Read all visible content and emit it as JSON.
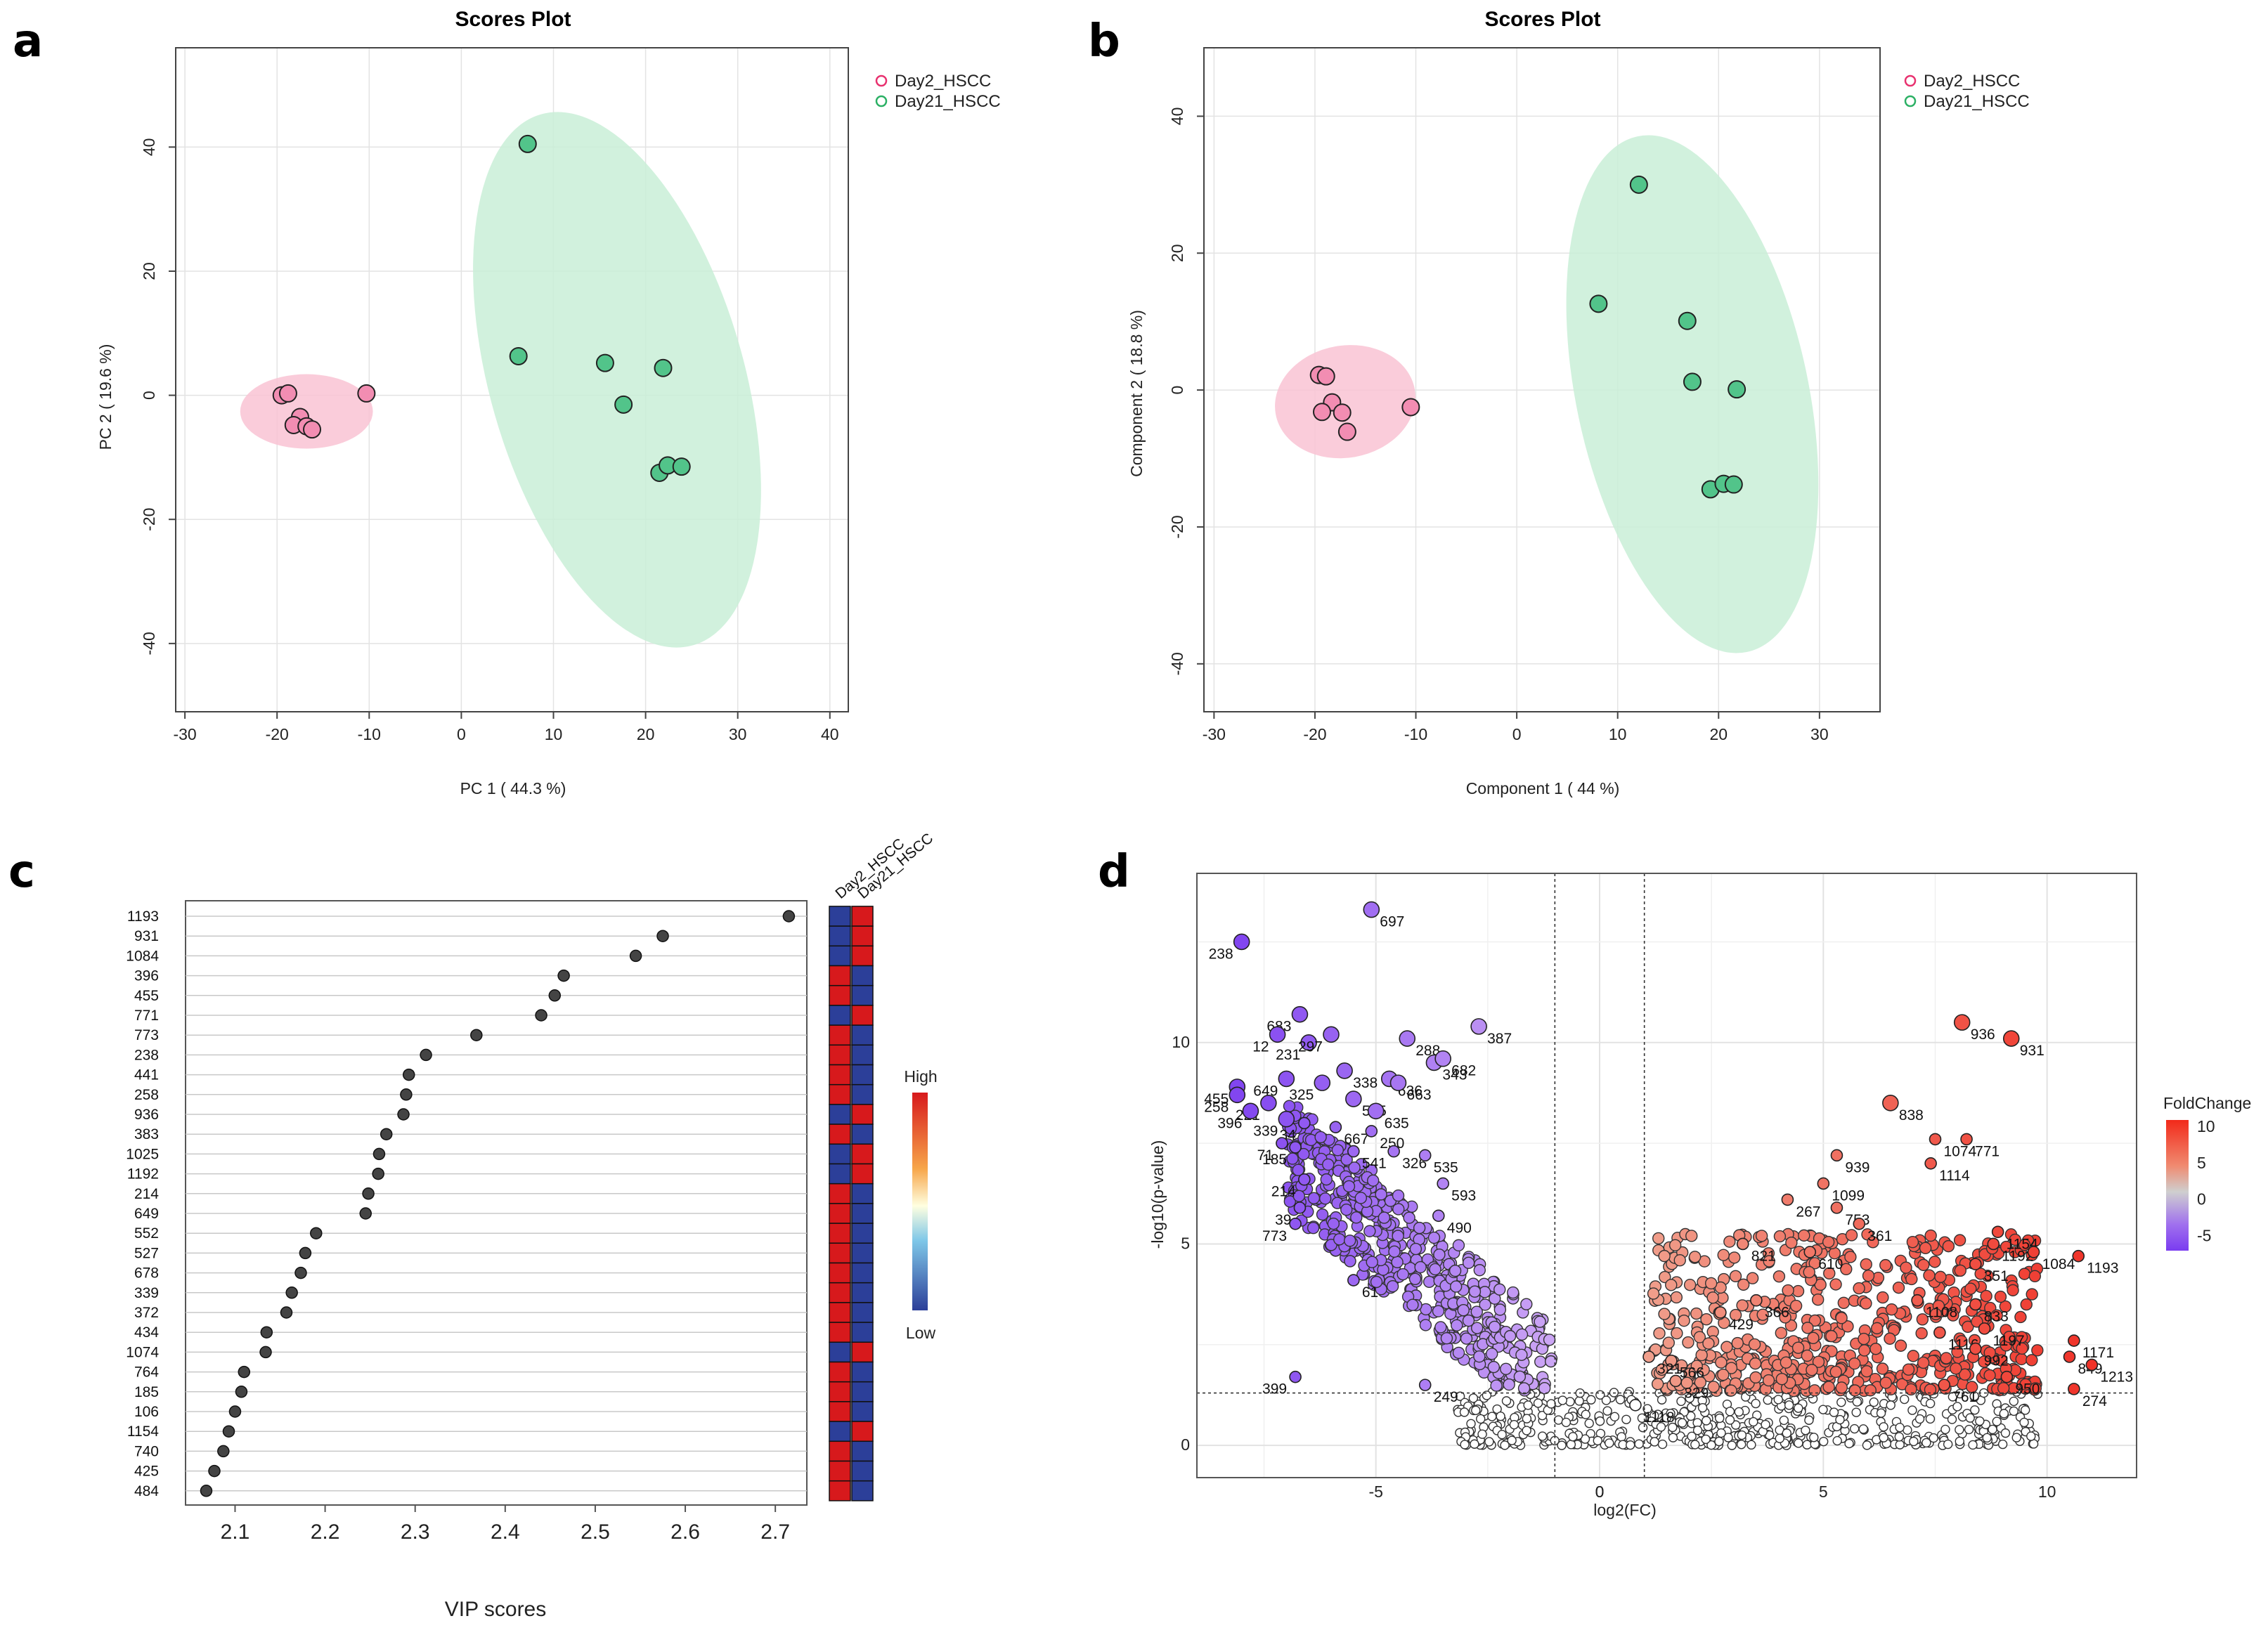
{
  "figure": {
    "panel_labels": [
      "a",
      "b",
      "c",
      "d"
    ]
  },
  "colors": {
    "day2": "#f28db2",
    "day21": "#52c48a",
    "day2_ellipse": "#f9c3d3",
    "day21_ellipse": "#c9eed7",
    "heat_high": "#d7191c",
    "heat_low": "#2c3f99",
    "volcano_up": "#f25430",
    "volcano_down": "#8a4cf0",
    "volcano_ns": "#ffffff"
  },
  "chart_data": [
    {
      "id": "a",
      "type": "scatter",
      "title": "Scores Plot",
      "xlabel": "PC 1 ( 44.3 %)",
      "ylabel": "PC 2 ( 19.6 %)",
      "xlim": [
        -31,
        42
      ],
      "ylim": [
        -51,
        56
      ],
      "xticks": [
        -30,
        -20,
        -10,
        0,
        10,
        20,
        30,
        40
      ],
      "yticks": [
        -40,
        -20,
        0,
        20,
        40
      ],
      "legend": [
        "Day2_HSCC",
        "Day21_HSCC"
      ],
      "legend_position": "top-right",
      "series": [
        {
          "name": "Day2_HSCC",
          "points": [
            [
              -19.5,
              0
            ],
            [
              -18.8,
              0.3
            ],
            [
              -17.5,
              -3.5
            ],
            [
              -18.2,
              -4.8
            ],
            [
              -16.8,
              -5.0
            ],
            [
              -16.2,
              -5.5
            ],
            [
              -10.3,
              0.3
            ]
          ],
          "ellipse": {
            "cx": -16.8,
            "cy": -2.6,
            "rx": 7.2,
            "ry": 6.0,
            "angle": 0
          }
        },
        {
          "name": "Day21_HSCC",
          "points": [
            [
              7.2,
              40.5
            ],
            [
              6.2,
              6.3
            ],
            [
              15.6,
              5.2
            ],
            [
              21.9,
              4.4
            ],
            [
              17.6,
              -1.5
            ],
            [
              21.5,
              -12.5
            ],
            [
              22.4,
              -11.3
            ],
            [
              23.9,
              -11.5
            ]
          ],
          "ellipse": {
            "cx": 16.9,
            "cy": 2.5,
            "rx": 13.8,
            "ry": 44.5,
            "angle": -16
          }
        }
      ]
    },
    {
      "id": "b",
      "type": "scatter",
      "title": "Scores Plot",
      "xlabel": "Component 1 ( 44 %)",
      "ylabel": "Component 2 ( 18.8 %)",
      "xlim": [
        -31,
        36
      ],
      "ylim": [
        -47,
        50
      ],
      "xticks": [
        -30,
        -20,
        -10,
        0,
        10,
        20,
        30
      ],
      "yticks": [
        -40,
        -20,
        0,
        20,
        40
      ],
      "legend": [
        "Day2_HSCC",
        "Day21_HSCC"
      ],
      "legend_position": "top-right",
      "series": [
        {
          "name": "Day2_HSCC",
          "points": [
            [
              -19.6,
              2.2
            ],
            [
              -18.9,
              2.0
            ],
            [
              -18.3,
              -1.8
            ],
            [
              -19.3,
              -3.2
            ],
            [
              -17.3,
              -3.3
            ],
            [
              -16.8,
              -6.1
            ],
            [
              -10.5,
              -2.5
            ]
          ],
          "ellipse": {
            "cx": -17.0,
            "cy": -1.7,
            "rx": 7.0,
            "ry": 8.2,
            "angle": -10
          }
        },
        {
          "name": "Day21_HSCC",
          "points": [
            [
              12.1,
              30.0
            ],
            [
              8.1,
              12.6
            ],
            [
              16.9,
              10.1
            ],
            [
              17.4,
              1.2
            ],
            [
              21.8,
              0.1
            ],
            [
              19.2,
              -14.5
            ],
            [
              20.5,
              -13.7
            ],
            [
              21.5,
              -13.8
            ]
          ],
          "ellipse": {
            "cx": 17.4,
            "cy": -0.6,
            "rx": 11.5,
            "ry": 38.5,
            "angle": -12
          }
        }
      ]
    },
    {
      "id": "c",
      "type": "scatter",
      "xlabel": "VIP scores",
      "xlim": [
        2.045,
        2.735
      ],
      "xticks": [
        2.1,
        2.2,
        2.3,
        2.4,
        2.5,
        2.6,
        2.7
      ],
      "heatmap_columns": [
        "Day2_HSCC",
        "Day21_HSCC"
      ],
      "colorbar": {
        "high": "High",
        "low": "Low"
      },
      "features": [
        {
          "name": "1193",
          "vip": 2.715,
          "day2": "low",
          "day21": "high"
        },
        {
          "name": "931",
          "vip": 2.575,
          "day2": "low",
          "day21": "high"
        },
        {
          "name": "1084",
          "vip": 2.545,
          "day2": "low",
          "day21": "high"
        },
        {
          "name": "396",
          "vip": 2.465,
          "day2": "high",
          "day21": "low"
        },
        {
          "name": "455",
          "vip": 2.455,
          "day2": "high",
          "day21": "low"
        },
        {
          "name": "771",
          "vip": 2.44,
          "day2": "low",
          "day21": "high"
        },
        {
          "name": "773",
          "vip": 2.368,
          "day2": "high",
          "day21": "low"
        },
        {
          "name": "238",
          "vip": 2.312,
          "day2": "high",
          "day21": "low"
        },
        {
          "name": "441",
          "vip": 2.293,
          "day2": "high",
          "day21": "low"
        },
        {
          "name": "258",
          "vip": 2.29,
          "day2": "high",
          "day21": "low"
        },
        {
          "name": "936",
          "vip": 2.287,
          "day2": "low",
          "day21": "high"
        },
        {
          "name": "383",
          "vip": 2.268,
          "day2": "high",
          "day21": "low"
        },
        {
          "name": "1025",
          "vip": 2.26,
          "day2": "low",
          "day21": "high"
        },
        {
          "name": "1192",
          "vip": 2.259,
          "day2": "low",
          "day21": "high"
        },
        {
          "name": "214",
          "vip": 2.248,
          "day2": "high",
          "day21": "low"
        },
        {
          "name": "649",
          "vip": 2.245,
          "day2": "high",
          "day21": "low"
        },
        {
          "name": "552",
          "vip": 2.19,
          "day2": "high",
          "day21": "low"
        },
        {
          "name": "527",
          "vip": 2.178,
          "day2": "high",
          "day21": "low"
        },
        {
          "name": "678",
          "vip": 2.173,
          "day2": "high",
          "day21": "low"
        },
        {
          "name": "339",
          "vip": 2.163,
          "day2": "high",
          "day21": "low"
        },
        {
          "name": "372",
          "vip": 2.157,
          "day2": "high",
          "day21": "low"
        },
        {
          "name": "434",
          "vip": 2.135,
          "day2": "high",
          "day21": "low"
        },
        {
          "name": "1074",
          "vip": 2.134,
          "day2": "low",
          "day21": "high"
        },
        {
          "name": "764",
          "vip": 2.11,
          "day2": "high",
          "day21": "low"
        },
        {
          "name": "185",
          "vip": 2.107,
          "day2": "high",
          "day21": "low"
        },
        {
          "name": "106",
          "vip": 2.1,
          "day2": "high",
          "day21": "low"
        },
        {
          "name": "1154",
          "vip": 2.093,
          "day2": "low",
          "day21": "high"
        },
        {
          "name": "740",
          "vip": 2.087,
          "day2": "high",
          "day21": "low"
        },
        {
          "name": "425",
          "vip": 2.077,
          "day2": "high",
          "day21": "low"
        },
        {
          "name": "484",
          "vip": 2.068,
          "day2": "high",
          "day21": "low"
        }
      ]
    },
    {
      "id": "d",
      "type": "scatter",
      "xlabel": "log2(FC)",
      "ylabel": "-log10(p-value)",
      "xlim": [
        -9,
        12
      ],
      "ylim": [
        -0.8,
        14.2
      ],
      "xticks": [
        -5,
        0,
        5,
        10
      ],
      "yticks": [
        0,
        5,
        10
      ],
      "thresholds": {
        "fc": [
          -1,
          1
        ],
        "p": 1.3
      },
      "legend_title": "FoldChange",
      "colorbar_ticks": [
        10,
        5,
        0,
        -5
      ],
      "labeled_points": [
        {
          "name": "697",
          "x": -5.1,
          "y": 13.3,
          "dir": "down"
        },
        {
          "name": "238",
          "x": -8.0,
          "y": 12.5,
          "dir": "down"
        },
        {
          "name": "683",
          "x": -6.7,
          "y": 10.7,
          "dir": "down"
        },
        {
          "name": "12",
          "x": -7.2,
          "y": 10.2,
          "dir": "down"
        },
        {
          "name": "231",
          "x": -6.5,
          "y": 10.0,
          "dir": "down"
        },
        {
          "name": "297",
          "x": -6.0,
          "y": 10.2,
          "dir": "down"
        },
        {
          "name": "338",
          "x": -5.7,
          "y": 9.3,
          "dir": "down"
        },
        {
          "name": "288",
          "x": -4.3,
          "y": 10.1,
          "dir": "down"
        },
        {
          "name": "387",
          "x": -2.7,
          "y": 10.4,
          "dir": "down"
        },
        {
          "name": "343",
          "x": -3.7,
          "y": 9.5,
          "dir": "down"
        },
        {
          "name": "636",
          "x": -4.7,
          "y": 9.1,
          "dir": "down"
        },
        {
          "name": "682",
          "x": -3.5,
          "y": 9.6,
          "dir": "down"
        },
        {
          "name": "663",
          "x": -4.5,
          "y": 9.0,
          "dir": "down"
        },
        {
          "name": "455",
          "x": -8.1,
          "y": 8.9,
          "dir": "down"
        },
        {
          "name": "649",
          "x": -7.0,
          "y": 9.1,
          "dir": "down"
        },
        {
          "name": "325",
          "x": -6.2,
          "y": 9.0,
          "dir": "down"
        },
        {
          "name": "515",
          "x": -5.5,
          "y": 8.6,
          "dir": "down"
        },
        {
          "name": "635",
          "x": -5.0,
          "y": 8.3,
          "dir": "down"
        },
        {
          "name": "258",
          "x": -8.1,
          "y": 8.7,
          "dir": "down"
        },
        {
          "name": "221",
          "x": -7.4,
          "y": 8.5,
          "dir": "down"
        },
        {
          "name": "34",
          "x": -6.6,
          "y": 8.0,
          "dir": "down"
        },
        {
          "name": "396",
          "x": -7.8,
          "y": 8.3,
          "dir": "down"
        },
        {
          "name": "339",
          "x": -7.0,
          "y": 8.1,
          "dir": "down"
        },
        {
          "name": "667",
          "x": -5.9,
          "y": 7.9,
          "dir": "down"
        },
        {
          "name": "250",
          "x": -5.1,
          "y": 7.8,
          "dir": "down"
        },
        {
          "name": "71",
          "x": -7.1,
          "y": 7.5,
          "dir": "down"
        },
        {
          "name": "541",
          "x": -5.5,
          "y": 7.3,
          "dir": "down"
        },
        {
          "name": "326",
          "x": -4.6,
          "y": 7.3,
          "dir": "down"
        },
        {
          "name": "185",
          "x": -6.8,
          "y": 7.4,
          "dir": "down"
        },
        {
          "name": "535",
          "x": -3.9,
          "y": 7.2,
          "dir": "down"
        },
        {
          "name": "214",
          "x": -6.6,
          "y": 6.6,
          "dir": "down"
        },
        {
          "name": "593",
          "x": -3.5,
          "y": 6.5,
          "dir": "down"
        },
        {
          "name": "39",
          "x": -6.7,
          "y": 5.9,
          "dir": "down"
        },
        {
          "name": "773",
          "x": -6.8,
          "y": 5.5,
          "dir": "down"
        },
        {
          "name": "490",
          "x": -3.6,
          "y": 5.7,
          "dir": "down"
        },
        {
          "name": "61",
          "x": -5.5,
          "y": 4.1,
          "dir": "down"
        },
        {
          "name": "399",
          "x": -6.8,
          "y": 1.7,
          "dir": "down"
        },
        {
          "name": "249",
          "x": -3.9,
          "y": 1.5,
          "dir": "down"
        },
        {
          "name": "936",
          "x": 8.1,
          "y": 10.5,
          "dir": "up"
        },
        {
          "name": "931",
          "x": 9.2,
          "y": 10.1,
          "dir": "up"
        },
        {
          "name": "838",
          "x": 6.5,
          "y": 8.5,
          "dir": "up"
        },
        {
          "name": "1074",
          "x": 7.5,
          "y": 7.6,
          "dir": "up"
        },
        {
          "name": "771",
          "x": 8.2,
          "y": 7.6,
          "dir": "up"
        },
        {
          "name": "939",
          "x": 5.3,
          "y": 7.2,
          "dir": "up"
        },
        {
          "name": "1114",
          "x": 7.4,
          "y": 7.0,
          "dir": "up"
        },
        {
          "name": "1099",
          "x": 5.0,
          "y": 6.5,
          "dir": "up"
        },
        {
          "name": "267",
          "x": 4.2,
          "y": 6.1,
          "dir": "up"
        },
        {
          "name": "753",
          "x": 5.3,
          "y": 5.9,
          "dir": "up"
        },
        {
          "name": "361",
          "x": 5.8,
          "y": 5.5,
          "dir": "up"
        },
        {
          "name": "1154",
          "x": 8.9,
          "y": 5.3,
          "dir": "up"
        },
        {
          "name": "821",
          "x": 3.2,
          "y": 5.0,
          "dir": "up"
        },
        {
          "name": "1192",
          "x": 8.8,
          "y": 5.0,
          "dir": "up"
        },
        {
          "name": "1084",
          "x": 9.7,
          "y": 4.8,
          "dir": "up"
        },
        {
          "name": "610",
          "x": 4.7,
          "y": 4.8,
          "dir": "up"
        },
        {
          "name": "351",
          "x": 8.4,
          "y": 4.5,
          "dir": "up"
        },
        {
          "name": "1193",
          "x": 10.7,
          "y": 4.7,
          "dir": "up"
        },
        {
          "name": "366",
          "x": 3.5,
          "y": 3.6,
          "dir": "up"
        },
        {
          "name": "429",
          "x": 2.7,
          "y": 3.3,
          "dir": "up"
        },
        {
          "name": "1108",
          "x": 7.1,
          "y": 3.6,
          "dir": "up"
        },
        {
          "name": "833",
          "x": 8.4,
          "y": 3.5,
          "dir": "up"
        },
        {
          "name": "1197",
          "x": 8.6,
          "y": 2.9,
          "dir": "up"
        },
        {
          "name": "1116",
          "x": 7.6,
          "y": 2.8,
          "dir": "up"
        },
        {
          "name": "1171",
          "x": 10.6,
          "y": 2.6,
          "dir": "up"
        },
        {
          "name": "992",
          "x": 8.4,
          "y": 2.4,
          "dir": "up"
        },
        {
          "name": "849",
          "x": 10.5,
          "y": 2.2,
          "dir": "up"
        },
        {
          "name": "566",
          "x": 1.6,
          "y": 2.1,
          "dir": "up"
        },
        {
          "name": "321",
          "x": 1.1,
          "y": 2.2,
          "dir": "up"
        },
        {
          "name": "1213",
          "x": 11.0,
          "y": 2.0,
          "dir": "up"
        },
        {
          "name": "950",
          "x": 9.1,
          "y": 1.7,
          "dir": "up"
        },
        {
          "name": "329",
          "x": 1.7,
          "y": 1.6,
          "dir": "up"
        },
        {
          "name": "761",
          "x": 7.7,
          "y": 1.5,
          "dir": "up"
        },
        {
          "name": "274",
          "x": 10.6,
          "y": 1.4,
          "dir": "up"
        },
        {
          "name": "1118",
          "x": 0.8,
          "y": 1.0,
          "dir": "ns"
        }
      ]
    }
  ]
}
